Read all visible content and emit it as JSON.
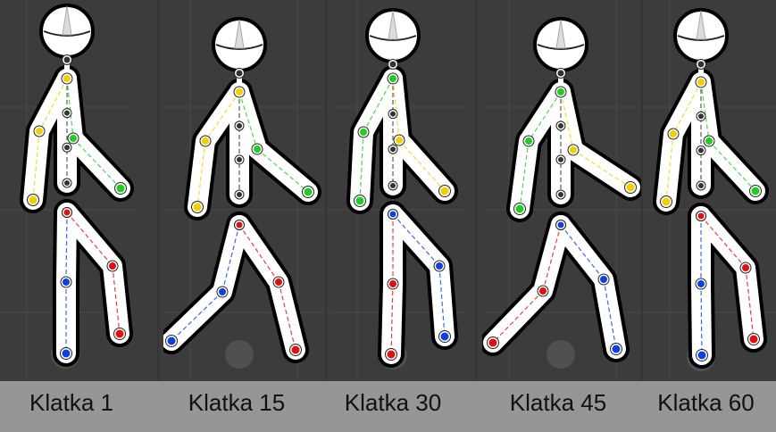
{
  "frames": [
    {
      "label": "Klatka 1"
    },
    {
      "label": "Klatka 15"
    },
    {
      "label": "Klatka 30"
    },
    {
      "label": "Klatka 45"
    },
    {
      "label": "Klatka 60"
    }
  ],
  "colors": {
    "background": "#3c3c3c",
    "grid": "#4a4a4a",
    "caption_bar": "#969696",
    "caption_text": "#111111",
    "body_fill": "#ffffff",
    "body_outline": "#000000",
    "joint_neutral": "#333333",
    "joint_yellow": "#f2d000",
    "joint_green": "#22cc22",
    "joint_red": "#e01010",
    "joint_blue": "#1040e0"
  }
}
